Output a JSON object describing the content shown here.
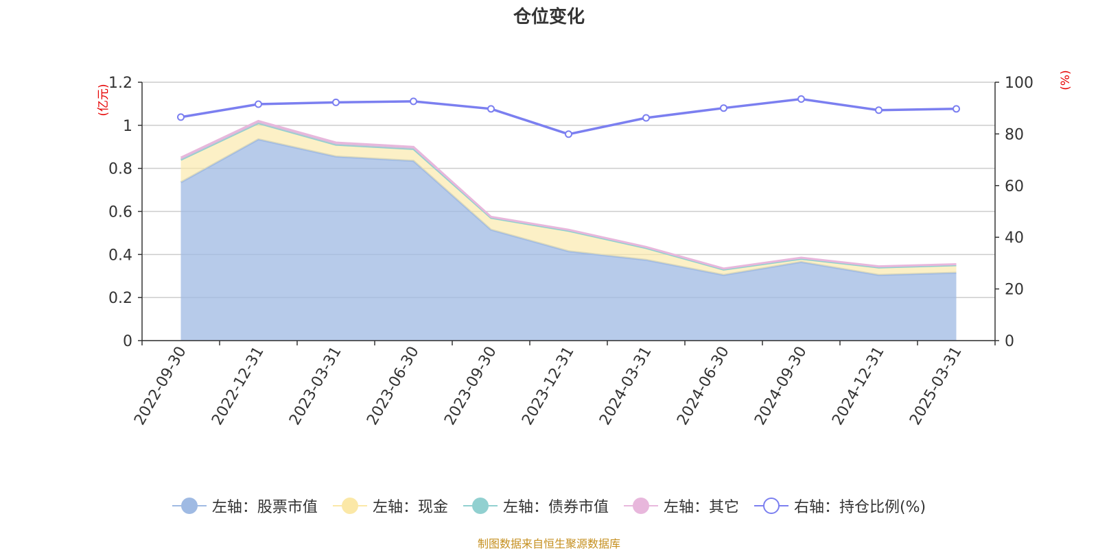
{
  "chart_data": {
    "type": "area",
    "title": "仓位变化",
    "categories": [
      "2022-09-30",
      "2022-12-31",
      "2023-03-31",
      "2023-06-30",
      "2023-09-30",
      "2023-12-31",
      "2024-03-31",
      "2024-06-30",
      "2024-09-30",
      "2024-12-31",
      "2025-03-31"
    ],
    "left_axis": {
      "label": "(亿元)",
      "min": 0,
      "max": 1.2,
      "ticks": [
        "0",
        "0.2",
        "0.4",
        "0.6",
        "0.8",
        "1",
        "1.2"
      ]
    },
    "right_axis": {
      "label": "(%)",
      "min": 0,
      "max": 100,
      "ticks": [
        "0",
        "20",
        "40",
        "60",
        "80",
        "100"
      ]
    },
    "series": [
      {
        "name": "左轴：股票市值",
        "axis": "left",
        "stack": true,
        "color": "#9fbae3",
        "values": [
          0.735,
          0.935,
          0.855,
          0.835,
          0.515,
          0.415,
          0.375,
          0.305,
          0.365,
          0.305,
          0.315
        ]
      },
      {
        "name": "左轴：现金",
        "axis": "left",
        "stack": true,
        "color": "#fbe8a7",
        "values": [
          0.105,
          0.075,
          0.055,
          0.055,
          0.055,
          0.095,
          0.055,
          0.025,
          0.015,
          0.035,
          0.035
        ]
      },
      {
        "name": "左轴：债券市值",
        "axis": "left",
        "stack": true,
        "color": "#91d0d0",
        "values": [
          0,
          0,
          0,
          0,
          0,
          0,
          0,
          0,
          0,
          0,
          0
        ]
      },
      {
        "name": "左轴：其它",
        "axis": "left",
        "stack": true,
        "color": "#e8b7dc",
        "values": [
          0.01,
          0.01,
          0.01,
          0.01,
          0.005,
          0.005,
          0.005,
          0.005,
          0.005,
          0.005,
          0.005
        ]
      },
      {
        "name": "右轴：持仓比例(%)",
        "axis": "right",
        "stack": false,
        "color": "#7b7ff0",
        "values": [
          86.5,
          91.5,
          92.2,
          92.6,
          89.7,
          79.9,
          86.2,
          90.0,
          93.5,
          89.2,
          89.7
        ]
      }
    ],
    "grid": true,
    "legend_position": "bottom"
  },
  "source_note": "制图数据来自恒生聚源数据库"
}
